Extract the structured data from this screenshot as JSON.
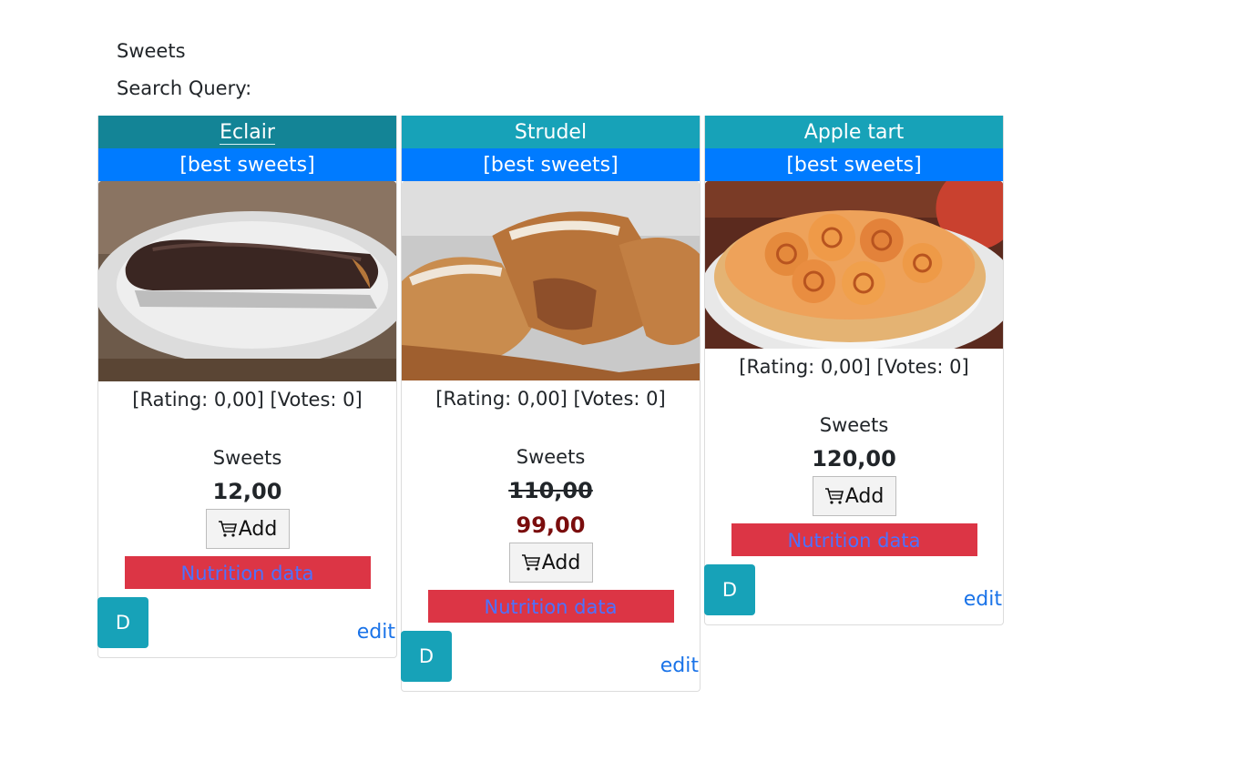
{
  "page": {
    "title": "Sweets",
    "search_label": "Search Query:"
  },
  "products": [
    {
      "name": "Eclair",
      "tag": "[best sweets]",
      "rating": "[Rating: 0,00] [Votes: 0]",
      "category": "Sweets",
      "price": "12,00",
      "old_price": "",
      "add_label": "Add",
      "nutrition_label": "Nutrition data",
      "d_label": "D",
      "edit_label": "edit"
    },
    {
      "name": "Strudel",
      "tag": "[best sweets]",
      "rating": "[Rating: 0,00] [Votes: 0]",
      "category": "Sweets",
      "price": "99,00",
      "old_price": "110,00",
      "add_label": "Add",
      "nutrition_label": "Nutrition data",
      "d_label": "D",
      "edit_label": "edit"
    },
    {
      "name": "Apple tart",
      "tag": "[best sweets]",
      "rating": "[Rating: 0,00] [Votes: 0]",
      "category": "Sweets",
      "price": "120,00",
      "old_price": "",
      "add_label": "Add",
      "nutrition_label": "Nutrition data",
      "d_label": "D",
      "edit_label": "edit"
    }
  ],
  "colors": {
    "title_bar": "#17a2b8",
    "title_bar_active": "#138496",
    "tag_bar": "#007bff",
    "nutrition_bar": "#dc3545",
    "sale_price": "#7a0d0d",
    "link": "#1a73e8"
  }
}
